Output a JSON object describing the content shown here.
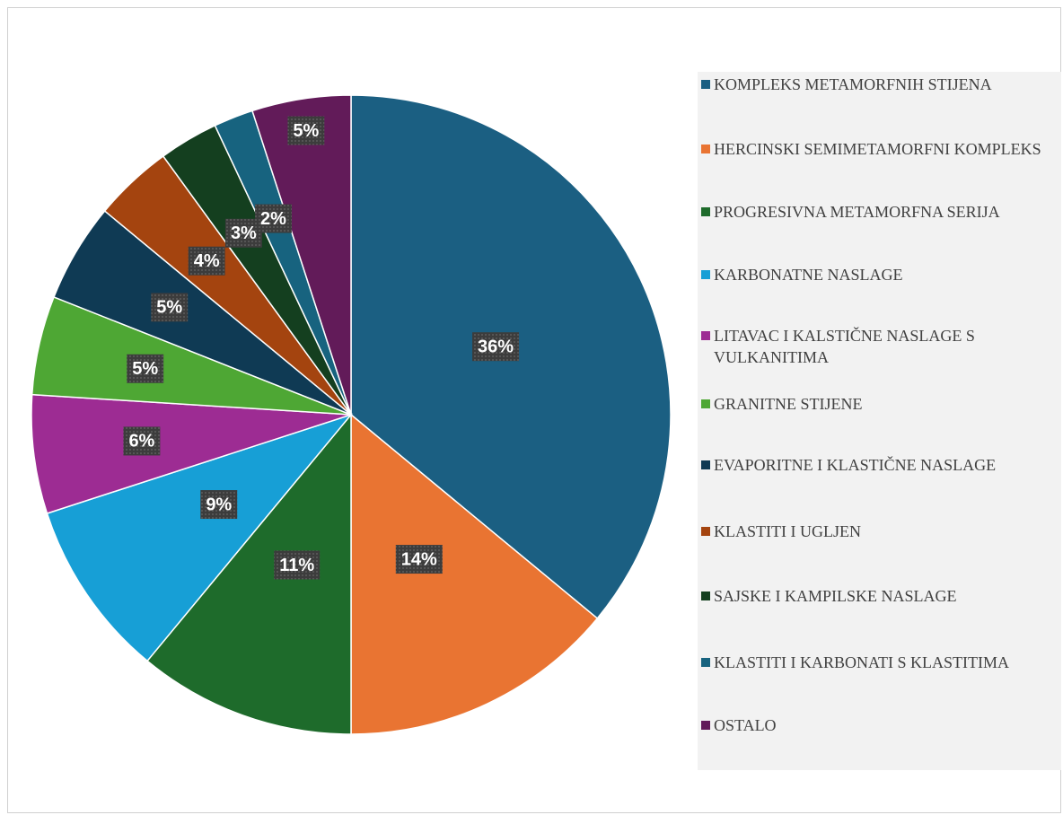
{
  "chart_data": {
    "type": "pie",
    "categories": [
      "KOMPLEKS METAMORFNIH STIJENA",
      "HERCINSKI SEMIMETAMORFNI KOMPLEKS",
      "PROGRESIVNA METAMORFNA SERIJA",
      "KARBONATNE NASLAGE",
      "LITAVAC I KALSTIČNE NASLAGE S VULKANITIMA",
      "GRANITNE STIJENE",
      "EVAPORITNE I KLASTIČNE NASLAGE",
      "KLASTITI I UGLJEN",
      "SAJSKE I KAMPILSKE NASLAGE",
      "KLASTITI I KARBONATI S KLASTITIMA",
      "OSTALO"
    ],
    "values": [
      36,
      14,
      11,
      9,
      6,
      5,
      5,
      4,
      3,
      2,
      5
    ],
    "value_labels": [
      "36%",
      "14%",
      "11%",
      "9%",
      "6%",
      "5%",
      "5%",
      "4%",
      "3%",
      "2%",
      "5%"
    ],
    "colors": [
      "#1b5f82",
      "#e97432",
      "#1e6b2b",
      "#179fd6",
      "#9d2c93",
      "#4ea734",
      "#0f3a54",
      "#a4440f",
      "#143f1f",
      "#17637f",
      "#621b59"
    ],
    "legend": "right"
  }
}
